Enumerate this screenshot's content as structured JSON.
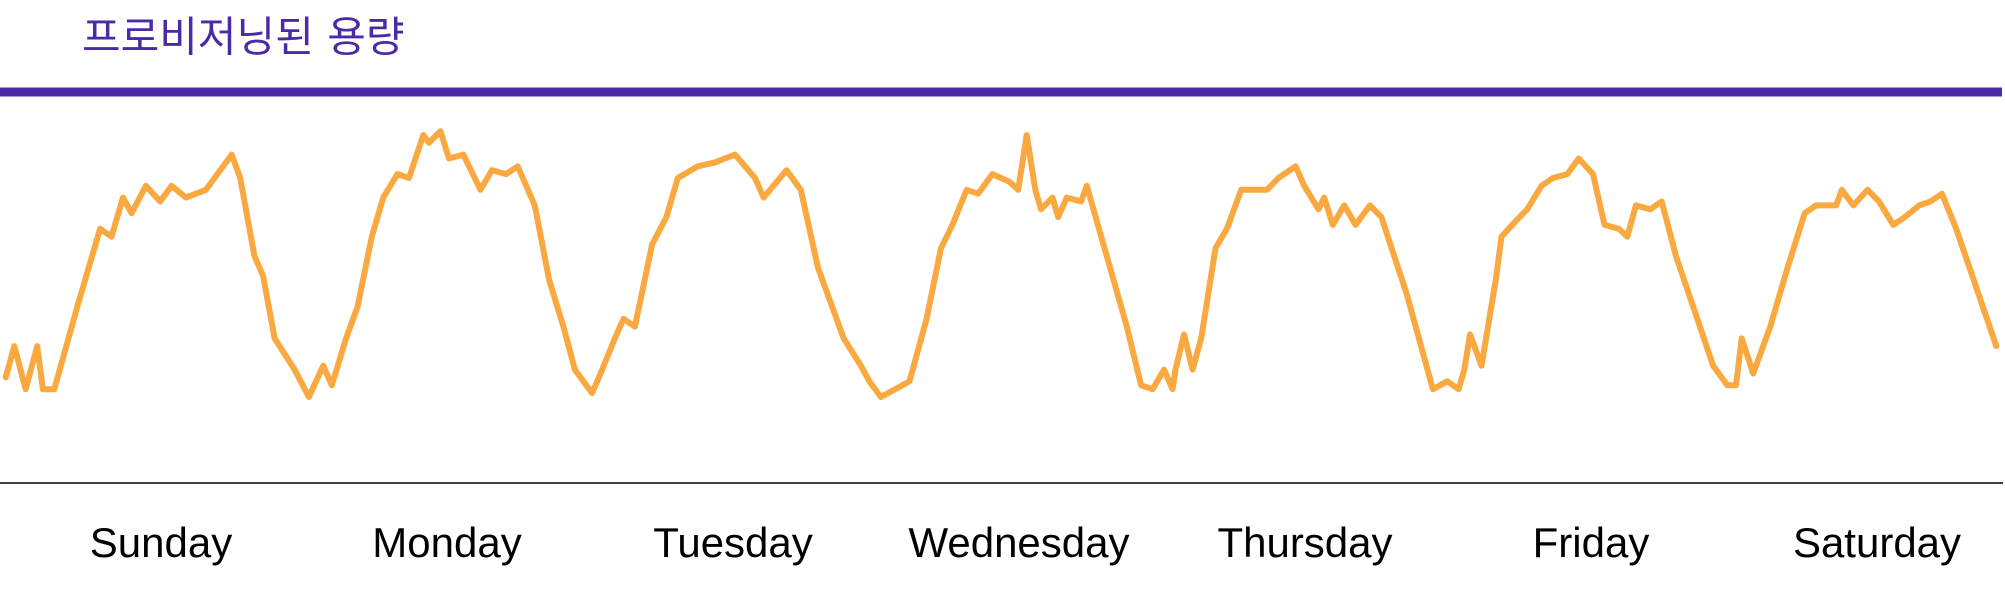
{
  "chart_data": {
    "type": "line",
    "title": "프로비저닝된 용량",
    "categories": [
      "Sunday",
      "Monday",
      "Tuesday",
      "Wednesday",
      "Thursday",
      "Friday",
      "Saturday"
    ],
    "xlim": [
      0,
      7
    ],
    "ylim": [
      0,
      100
    ],
    "series": [
      {
        "color": "#4b2aa8",
        "x": [
          0,
          7
        ],
        "values": [
          100,
          100
        ]
      },
      {
        "color": "#f9a940",
        "x": [
          0.02,
          0.05,
          0.09,
          0.13,
          0.15,
          0.19,
          0.27,
          0.35,
          0.39,
          0.43,
          0.46,
          0.51,
          0.56,
          0.6,
          0.65,
          0.72,
          0.76,
          0.81,
          0.84,
          0.89,
          0.92,
          0.96,
          1.03,
          1.08,
          1.13,
          1.16,
          1.21,
          1.25,
          1.3,
          1.34,
          1.39,
          1.43,
          1.48,
          1.5,
          1.54,
          1.57,
          1.62,
          1.68,
          1.72,
          1.77,
          1.81,
          1.87,
          1.92,
          1.97,
          2.01,
          2.07,
          2.1,
          2.15,
          2.18,
          2.22,
          2.28,
          2.33,
          2.37,
          2.44,
          2.5,
          2.57,
          2.64,
          2.67,
          2.75,
          2.8,
          2.86,
          2.95,
          3.01,
          3.04,
          3.08,
          3.13,
          3.18,
          3.24,
          3.29,
          3.33,
          3.38,
          3.42,
          3.47,
          3.53,
          3.56,
          3.59,
          3.62,
          3.64,
          3.68,
          3.7,
          3.73,
          3.78,
          3.8,
          3.87,
          3.94,
          3.99,
          4.03,
          4.07,
          4.1,
          4.11,
          4.14,
          4.17,
          4.2,
          4.25,
          4.29,
          4.34,
          4.43,
          4.47,
          4.53,
          4.56,
          4.61,
          4.63,
          4.66,
          4.7,
          4.74,
          4.79,
          4.83,
          4.92,
          5.01,
          5.06,
          5.1,
          5.12,
          5.14,
          5.18,
          5.23,
          5.25,
          5.3,
          5.34,
          5.39,
          5.43,
          5.48,
          5.52,
          5.57,
          5.61,
          5.66,
          5.69,
          5.72,
          5.77,
          5.81,
          5.86,
          5.93,
          5.99,
          6.04,
          6.07,
          6.09,
          6.13,
          6.19,
          6.25,
          6.31,
          6.35,
          6.42,
          6.44,
          6.48,
          6.53,
          6.57,
          6.62,
          6.66,
          6.71,
          6.75,
          6.79,
          6.84,
          6.91,
          6.98
        ],
        "values": [
          27,
          35,
          24,
          35,
          24,
          24,
          45,
          65,
          63,
          73,
          69,
          76,
          72,
          76,
          73,
          75,
          79,
          84,
          78,
          58,
          53,
          37,
          29,
          22,
          30,
          25,
          37,
          45,
          63,
          73,
          79,
          78,
          89,
          87,
          90,
          83,
          84,
          75,
          80,
          79,
          81,
          71,
          52,
          40,
          29,
          23,
          28,
          37,
          42,
          40,
          61,
          68,
          78,
          81,
          82,
          84,
          78,
          73,
          80,
          75,
          55,
          37,
          30,
          26,
          22,
          24,
          26,
          42,
          60,
          66,
          75,
          74,
          79,
          77,
          75,
          89,
          75,
          70,
          73,
          68,
          73,
          72,
          76,
          58,
          40,
          25,
          24,
          29,
          24,
          29,
          38,
          29,
          37,
          60,
          65,
          75,
          75,
          78,
          81,
          76,
          70,
          73,
          66,
          71,
          66,
          71,
          68,
          48,
          24,
          26,
          24,
          29,
          38,
          30,
          52,
          63,
          67,
          70,
          76,
          78,
          79,
          83,
          79,
          66,
          65,
          63,
          71,
          70,
          72,
          58,
          43,
          30,
          25,
          25,
          37,
          28,
          40,
          55,
          69,
          71,
          71,
          75,
          71,
          75,
          72,
          66,
          68,
          71,
          72,
          74,
          65,
          50,
          35
        ]
      }
    ]
  }
}
